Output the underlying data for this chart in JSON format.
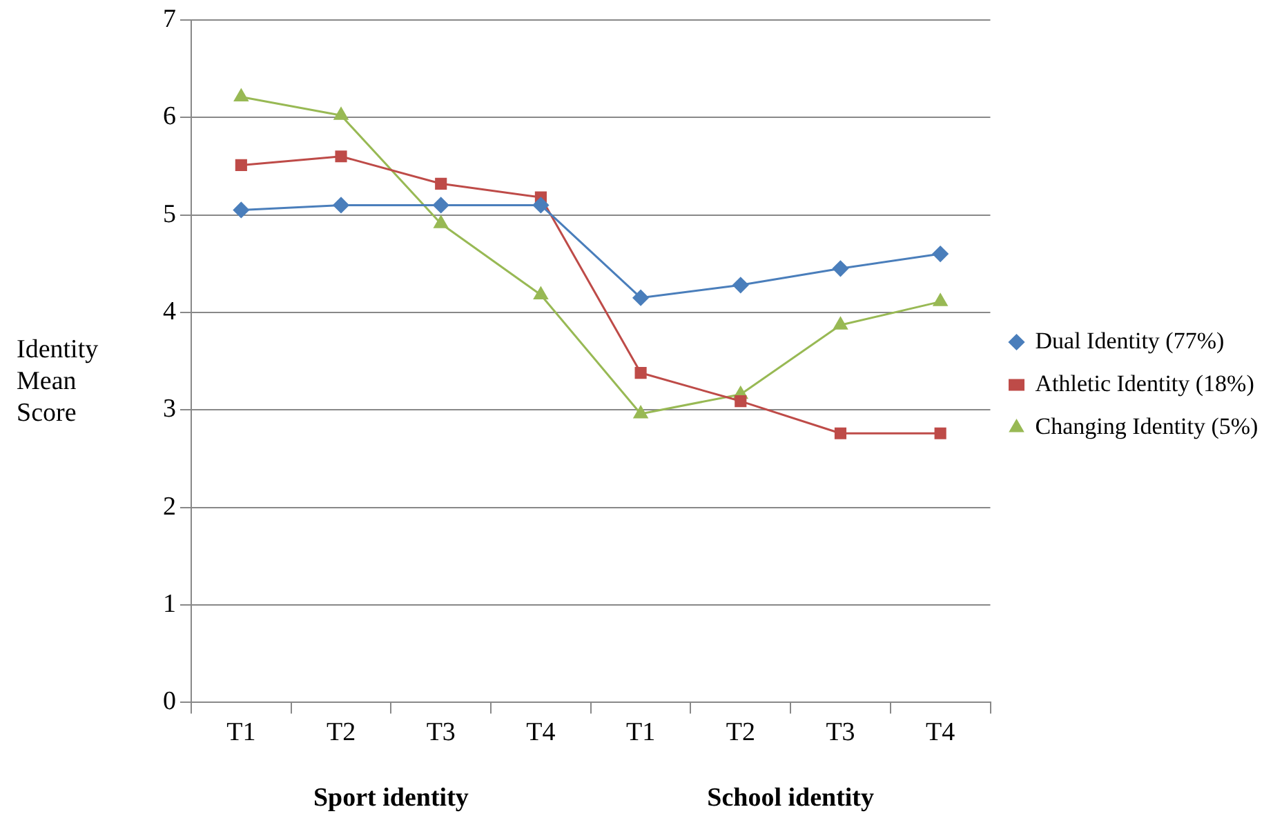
{
  "chart_data": {
    "type": "line",
    "ylabel": "Identity Mean Score",
    "categories": [
      "T1",
      "T2",
      "T3",
      "T4",
      "T1",
      "T2",
      "T3",
      "T4"
    ],
    "series": [
      {
        "name": "Dual Identity (77%)",
        "color": "#4a7ebb",
        "marker": "diamond",
        "values": [
          5.05,
          5.1,
          5.1,
          5.1,
          4.15,
          4.28,
          4.45,
          4.6
        ]
      },
      {
        "name": "Athletic Identity (18%)",
        "color": "#be4b48",
        "marker": "square",
        "values": [
          5.51,
          5.6,
          5.32,
          5.18,
          3.38,
          3.09,
          2.76,
          2.76
        ]
      },
      {
        "name": "Changing Identity (5%)",
        "color": "#98b954",
        "marker": "triangle",
        "values": [
          6.21,
          6.02,
          4.91,
          4.18,
          2.96,
          3.16,
          3.87,
          4.11
        ]
      }
    ],
    "annotations": [
      "Sport identity",
      "School identity"
    ],
    "ylim": [
      0,
      7
    ],
    "yticks": [
      0,
      1,
      2,
      3,
      4,
      5,
      6,
      7
    ],
    "grid": "y",
    "legend": "right"
  }
}
